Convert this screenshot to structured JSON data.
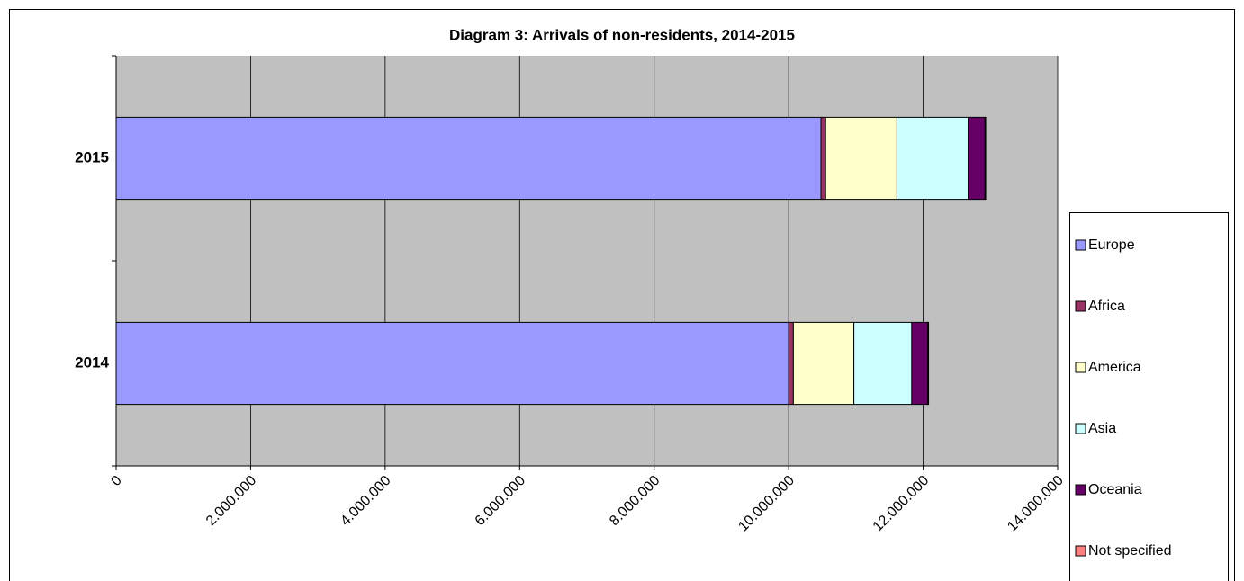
{
  "chart_data": {
    "type": "stacked-barh",
    "title": "Diagram 3: Arrivals of non-residents, 2014-2015",
    "categories": [
      "2014",
      "2015"
    ],
    "series": [
      {
        "name": "Europe",
        "color": "#9999ff",
        "values": [
          10000000,
          10480000
        ]
      },
      {
        "name": "Africa",
        "color": "#993366",
        "values": [
          70000,
          70000
        ]
      },
      {
        "name": "America",
        "color": "#ffffcc",
        "values": [
          900000,
          1060000
        ]
      },
      {
        "name": "Asia",
        "color": "#ccffff",
        "values": [
          860000,
          1060000
        ]
      },
      {
        "name": "Oceania",
        "color": "#660066",
        "values": [
          240000,
          250000
        ]
      },
      {
        "name": "Not specified",
        "color": "#ff8080",
        "values": [
          10000,
          10000
        ]
      }
    ],
    "xlim": [
      0,
      14000000
    ],
    "xticks": [
      0,
      {
        "value": 2000000,
        "label": "2.000.000"
      },
      {
        "value": 4000000,
        "label": "4.000.000"
      },
      {
        "value": 6000000,
        "label": "6.000.000"
      },
      {
        "value": 8000000,
        "label": "8.000.000"
      },
      {
        "value": 10000000,
        "label": "10.000.000"
      },
      {
        "value": 12000000,
        "label": "12.000.000"
      },
      {
        "value": 14000000,
        "label": "14.000.000"
      }
    ],
    "grid": true,
    "legend": "right",
    "plot_background": "#c0c0c0"
  }
}
